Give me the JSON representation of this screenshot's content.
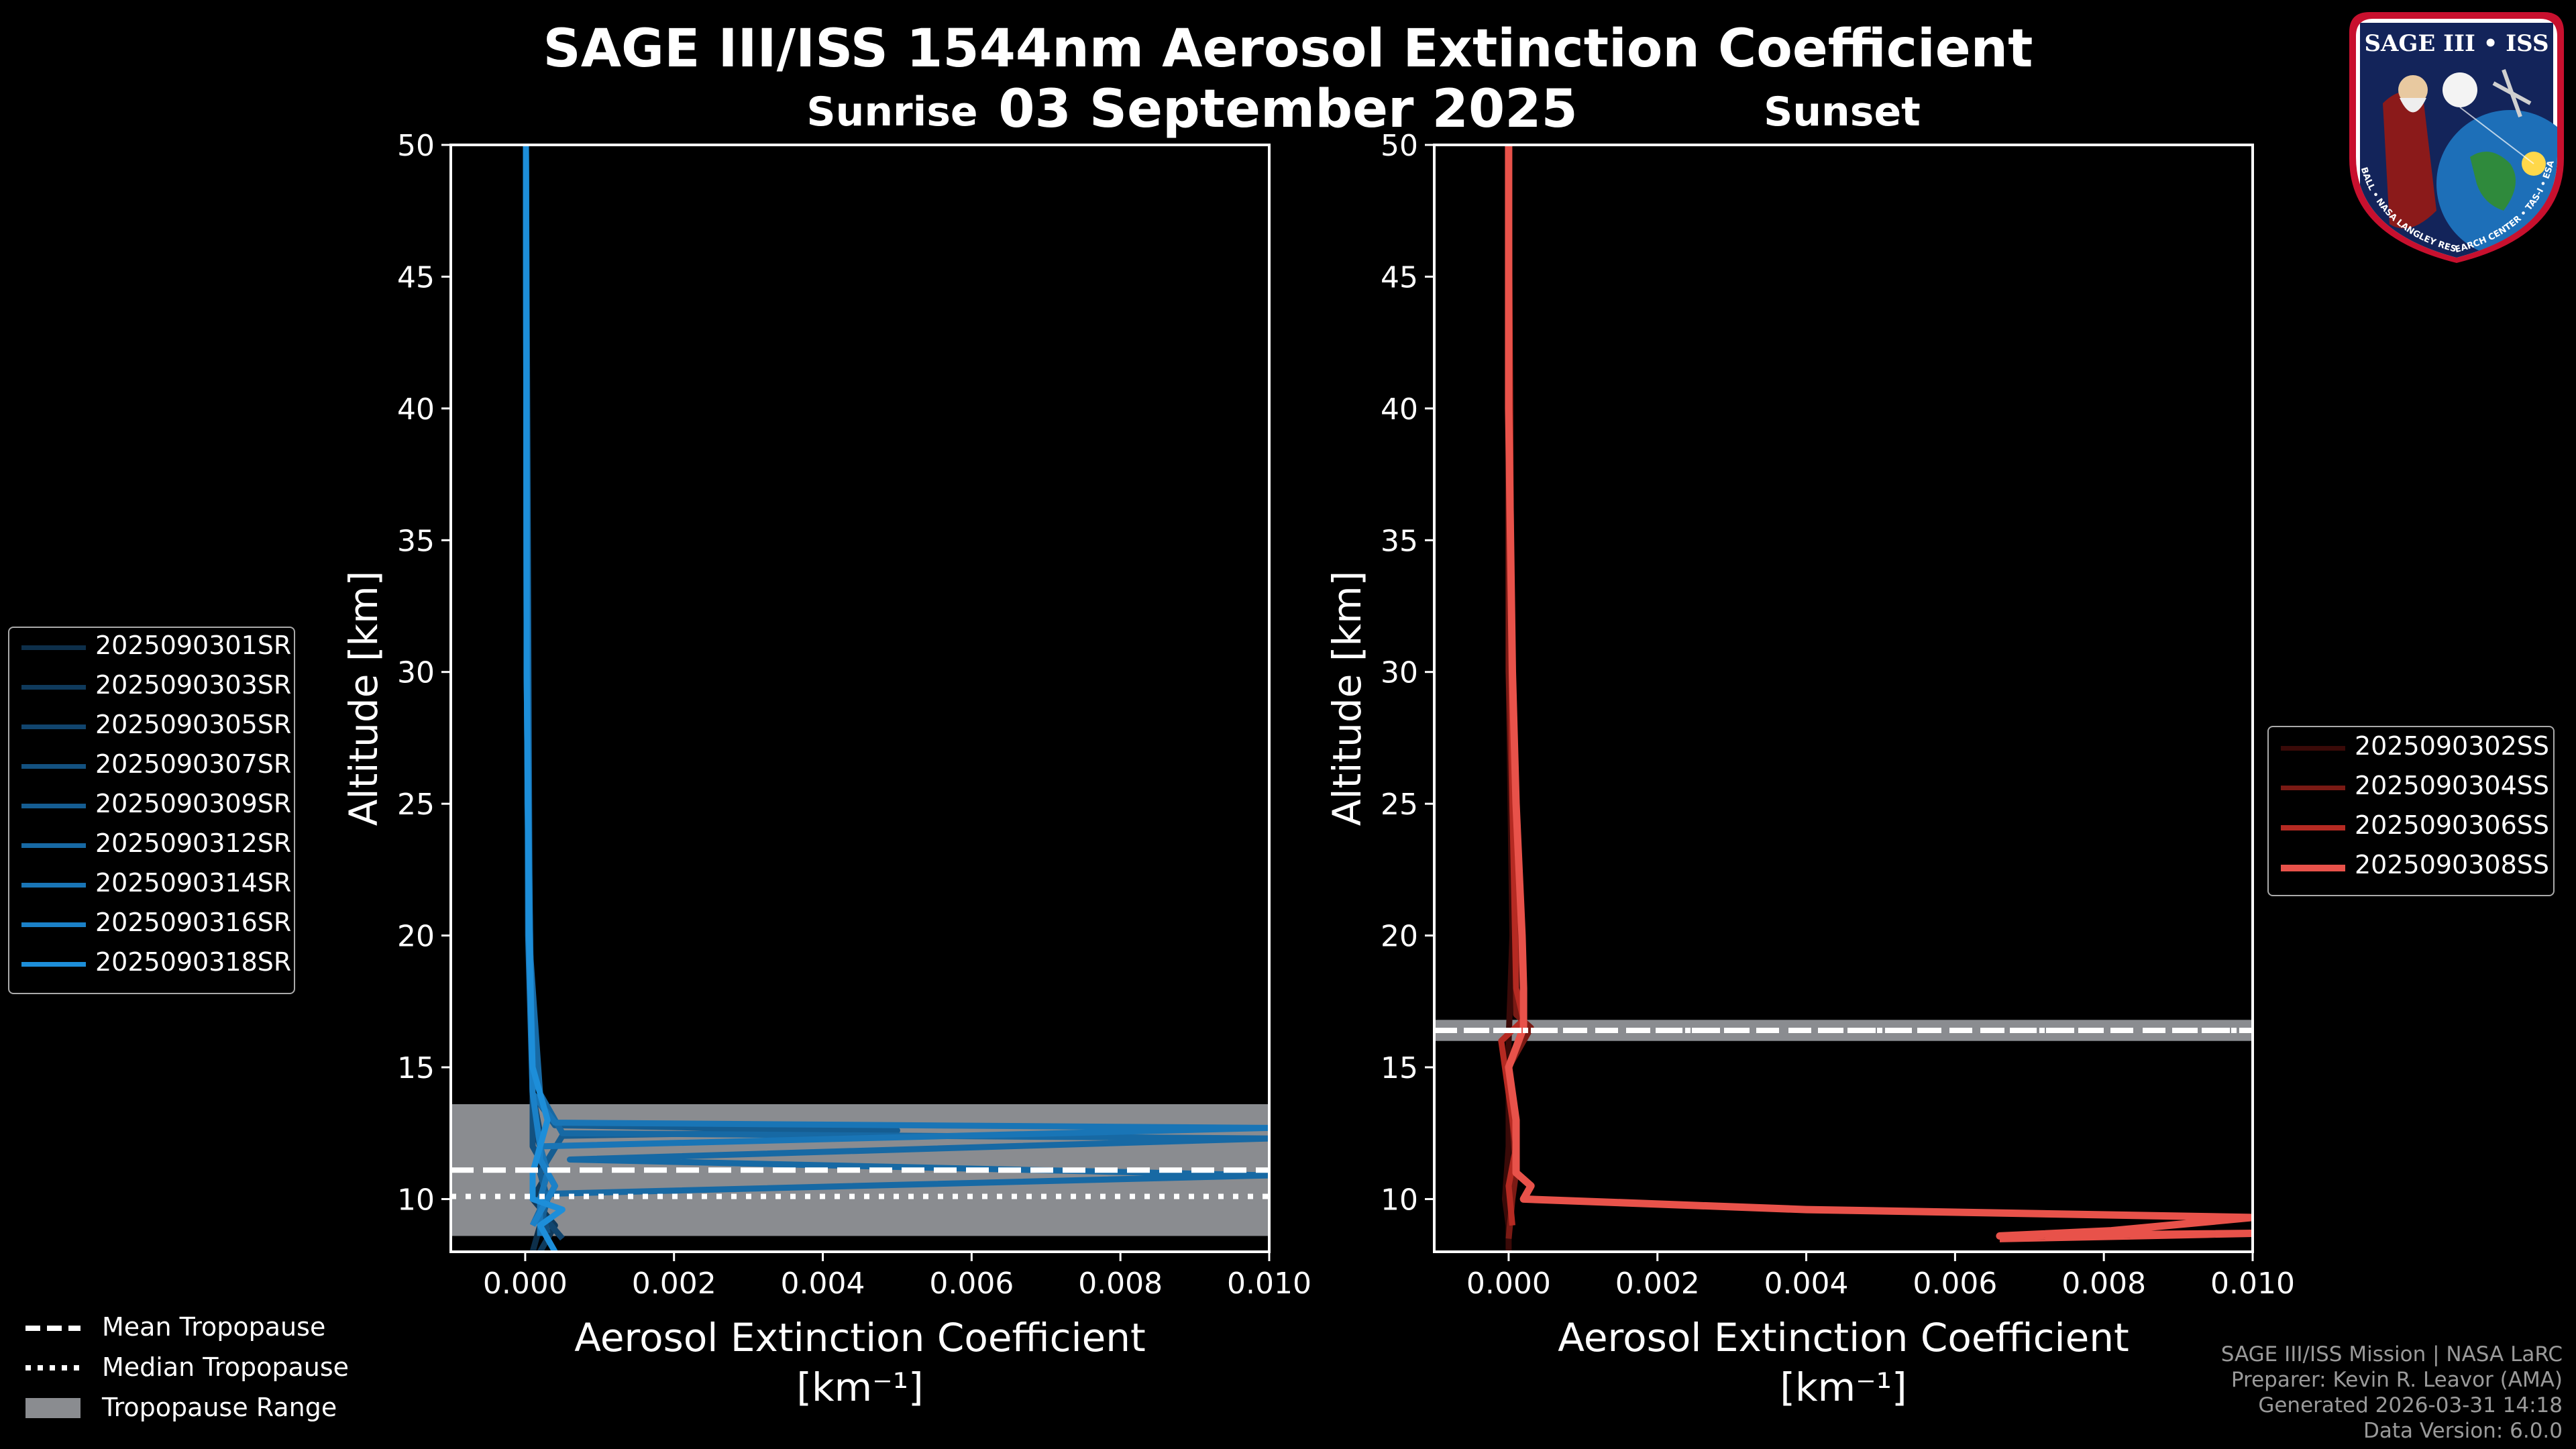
{
  "title_line1": "SAGE III/ISS 1544nm Aerosol Extinction Coefficient",
  "title_line2": "03 September 2025",
  "panels": {
    "sunrise_title": "Sunrise",
    "sunset_title": "Sunset",
    "ylabel": "Altitude [km]",
    "xlabel_line1": "Aerosol Extinction Coefficient",
    "xlabel_line2": "[km⁻¹]",
    "yticks": [
      "10",
      "15",
      "20",
      "25",
      "30",
      "35",
      "40",
      "45",
      "50"
    ],
    "xticks": [
      "0.000",
      "0.002",
      "0.004",
      "0.006",
      "0.008",
      "0.010"
    ]
  },
  "sunrise_legend": [
    "2025090301SR",
    "2025090303SR",
    "2025090305SR",
    "2025090307SR",
    "2025090309SR",
    "2025090312SR",
    "2025090314SR",
    "2025090316SR",
    "2025090318SR"
  ],
  "sunset_legend": [
    "2025090302SS",
    "2025090304SS",
    "2025090306SS",
    "2025090308SS"
  ],
  "tropopause_legend": {
    "mean": "Mean Tropopause",
    "median": "Median Tropopause",
    "range": "Tropopause Range"
  },
  "credits": {
    "line1": "SAGE III/ISS Mission | NASA LaRC",
    "line2": "Preparer: Kevin R. Leavor (AMA)",
    "line3": "Generated 2026-03-31 14:18",
    "line4": "Data Version: 6.0.0"
  },
  "logo": {
    "text": "SAGE III • ISS",
    "ring_text": "BALL • NASA LANGLEY RESEARCH CENTER • TAS-I • ESA"
  },
  "colors": {
    "sunrise": [
      "#0d2f4a",
      "#0f3a5c",
      "#11456e",
      "#135180",
      "#155d92",
      "#1769a4",
      "#1975b6",
      "#1b81c8",
      "#1d8ed9"
    ],
    "sunset": [
      "#3a0a08",
      "#7a1a14",
      "#b52a22",
      "#e8524a"
    ],
    "tropo_range": "#8a8c90"
  },
  "chart_data": [
    {
      "type": "line",
      "title": "Sunrise",
      "xlabel": "Aerosol Extinction Coefficient [km⁻¹]",
      "ylabel": "Altitude [km]",
      "xlim": [
        -0.001,
        0.01
      ],
      "ylim": [
        8,
        50
      ],
      "tropopause": {
        "mean": 11.1,
        "median": 10.1,
        "range": [
          8.6,
          13.6
        ]
      },
      "series": [
        {
          "name": "2025090301SR",
          "points": [
            [
              0.0001,
              8
            ],
            [
              0.0002,
              9
            ],
            [
              0.0003,
              10
            ],
            [
              0.0002,
              11
            ],
            [
              0.0002,
              12
            ],
            [
              0.0001,
              13
            ],
            [
              0.0001,
              15
            ],
            [
              5e-05,
              20
            ],
            [
              2e-05,
              30
            ],
            [
              1e-05,
              50
            ]
          ]
        },
        {
          "name": "2025090303SR",
          "points": [
            [
              0.0002,
              8
            ],
            [
              0.0004,
              9
            ],
            [
              0.0001,
              10
            ],
            [
              0.0003,
              11
            ],
            [
              0.0001,
              13
            ],
            [
              0.0001,
              15
            ],
            [
              6e-05,
              20
            ],
            [
              2e-05,
              30
            ],
            [
              1e-05,
              50
            ]
          ]
        },
        {
          "name": "2025090305SR",
          "points": [
            [
              0.0005,
              8.5
            ],
            [
              0.0002,
              9.5
            ],
            [
              0.0004,
              10.5
            ],
            [
              0.0002,
              11.5
            ],
            [
              0.0002,
              12.5
            ],
            [
              0.0001,
              14
            ],
            [
              8e-05,
              18
            ],
            [
              3e-05,
              25
            ],
            [
              1e-05,
              50
            ]
          ]
        },
        {
          "name": "2025090307SR",
          "points": [
            [
              0.0003,
              8.7
            ],
            [
              0.0002,
              10
            ],
            [
              0.0003,
              11
            ],
            [
              0.0001,
              12
            ],
            [
              0.0001,
              14
            ],
            [
              5e-05,
              20
            ],
            [
              2e-05,
              30
            ],
            [
              1e-05,
              50
            ]
          ]
        },
        {
          "name": "2025090309SR",
          "points": [
            [
              0.0002,
              9
            ],
            [
              0.0003,
              10
            ],
            [
              0.0002,
              11
            ],
            [
              0.0005,
              12.4
            ],
            [
              0.005,
              12.6
            ],
            [
              0.0004,
              12.8
            ],
            [
              0.0001,
              14
            ],
            [
              6e-05,
              20
            ],
            [
              1e-05,
              50
            ]
          ]
        },
        {
          "name": "2025090312SR",
          "points": [
            [
              0.0001,
              9
            ],
            [
              0.0003,
              10.2
            ],
            [
              0.01,
              10.9
            ],
            [
              0.0006,
              11.5
            ],
            [
              0.01,
              12.3
            ],
            [
              0.0005,
              12.5
            ],
            [
              0.0002,
              14
            ],
            [
              5e-05,
              20
            ],
            [
              1e-05,
              50
            ]
          ]
        },
        {
          "name": "2025090314SR",
          "points": [
            [
              0.0002,
              8.6
            ],
            [
              0.0002,
              10
            ],
            [
              0.0003,
              11
            ],
            [
              0.0002,
              12
            ],
            [
              0.01,
              12.7
            ],
            [
              0.0004,
              12.9
            ],
            [
              0.0001,
              14
            ],
            [
              4e-05,
              20
            ],
            [
              1e-05,
              50
            ]
          ]
        },
        {
          "name": "2025090316SR",
          "points": [
            [
              0.0001,
              9
            ],
            [
              0.0004,
              10.5
            ],
            [
              0.0002,
              11.5
            ],
            [
              0.0002,
              12
            ],
            [
              0.0001,
              14
            ],
            [
              7e-05,
              19
            ],
            [
              2e-05,
              30
            ],
            [
              1e-05,
              50
            ]
          ]
        },
        {
          "name": "2025090318SR",
          "points": [
            [
              0.0004,
              8
            ],
            [
              0.0002,
              9
            ],
            [
              0.0005,
              9.6
            ],
            [
              0.0001,
              10
            ],
            [
              0.0001,
              11
            ],
            [
              0.0003,
              13
            ],
            [
              0.0001,
              15
            ],
            [
              5e-05,
              20
            ],
            [
              2e-05,
              30
            ],
            [
              1e-05,
              50
            ]
          ]
        }
      ]
    },
    {
      "type": "line",
      "title": "Sunset",
      "xlabel": "Aerosol Extinction Coefficient [km⁻¹]",
      "ylabel": "Altitude [km]",
      "xlim": [
        -0.001,
        0.01
      ],
      "ylim": [
        8,
        50
      ],
      "tropopause": {
        "mean": 16.4,
        "median": 16.4,
        "range": [
          16.0,
          16.8
        ]
      },
      "series": [
        {
          "name": "2025090302SS",
          "points": [
            [
              0.0,
              8
            ],
            [
              0.0,
              9
            ],
            [
              -5e-05,
              10
            ],
            [
              0.0,
              12
            ],
            [
              0.0,
              16
            ],
            [
              5e-05,
              20
            ],
            [
              0.0,
              30
            ],
            [
              0.0,
              50
            ]
          ]
        },
        {
          "name": "2025090304SS",
          "points": [
            [
              0.0,
              8.5
            ],
            [
              5e-05,
              10
            ],
            [
              0.0001,
              11
            ],
            [
              0.0,
              15
            ],
            [
              0.0003,
              16.5
            ],
            [
              0.0001,
              17
            ],
            [
              0.0001,
              20
            ],
            [
              0.0,
              30
            ],
            [
              0.0,
              50
            ]
          ]
        },
        {
          "name": "2025090306SS",
          "points": [
            [
              5e-05,
              9
            ],
            [
              0.0,
              10.5
            ],
            [
              0.0001,
              12
            ],
            [
              0.0,
              14
            ],
            [
              -0.0001,
              16
            ],
            [
              0.0002,
              16.8
            ],
            [
              0.0001,
              18
            ],
            [
              5e-05,
              25
            ],
            [
              0.0,
              50
            ]
          ]
        },
        {
          "name": "2025090308SS",
          "points": [
            [
              0.0066,
              8.5
            ],
            [
              0.01,
              8.7
            ],
            [
              0.0066,
              8.6
            ],
            [
              0.0081,
              8.8
            ],
            [
              0.01,
              9.3
            ],
            [
              0.004,
              9.6
            ],
            [
              0.0002,
              10
            ],
            [
              0.0003,
              10.5
            ],
            [
              0.0001,
              11
            ],
            [
              0.0001,
              13
            ],
            [
              0.0,
              15
            ],
            [
              0.0002,
              16.5
            ],
            [
              0.0002,
              18
            ],
            [
              0.00018,
              20
            ],
            [
              0.0001,
              25
            ],
            [
              5e-05,
              30
            ],
            [
              0.0,
              40
            ],
            [
              0.0,
              50
            ]
          ]
        }
      ]
    }
  ]
}
